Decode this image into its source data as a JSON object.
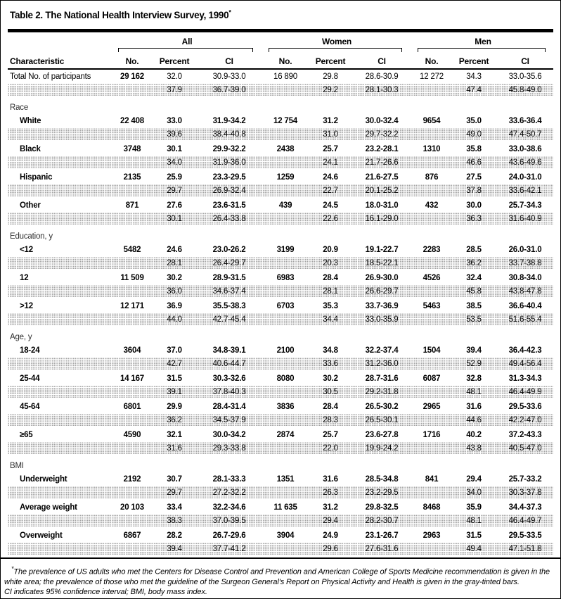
{
  "table_title": "Table 2. The National Health Interview Survey, 1990",
  "title_mark": "*",
  "header": {
    "characteristic": "Characteristic",
    "groups": [
      {
        "label": "All",
        "subcols": [
          "No.",
          "Percent",
          "CI"
        ]
      },
      {
        "label": "Women",
        "subcols": [
          "No.",
          "Percent",
          "CI"
        ]
      },
      {
        "label": "Men",
        "subcols": [
          "No.",
          "Percent",
          "CI"
        ]
      }
    ]
  },
  "table": {
    "rows": [
      {
        "type": "data",
        "label": "Total No. of participants",
        "indent": false,
        "emph": "first",
        "white": [
          "29 162",
          "32.0",
          "30.9-33.0",
          "16 890",
          "29.8",
          "28.6-30.9",
          "12 272",
          "34.3",
          "33.0-35.6"
        ],
        "gray": [
          "37.9",
          "36.7-39.0",
          "29.2",
          "28.1-30.3",
          "47.4",
          "45.8-49.0"
        ]
      },
      {
        "type": "section",
        "label": "Race"
      },
      {
        "type": "data",
        "label": "White",
        "indent": true,
        "emph": "row",
        "white": [
          "22 408",
          "33.0",
          "31.9-34.2",
          "12 754",
          "31.2",
          "30.0-32.4",
          "9654",
          "35.0",
          "33.6-36.4"
        ],
        "gray": [
          "39.6",
          "38.4-40.8",
          "31.0",
          "29.7-32.2",
          "49.0",
          "47.4-50.7"
        ]
      },
      {
        "type": "data",
        "label": "Black",
        "indent": true,
        "emph": "row",
        "white": [
          "3748",
          "30.1",
          "29.9-32.2",
          "2438",
          "25.7",
          "23.2-28.1",
          "1310",
          "35.8",
          "33.0-38.6"
        ],
        "gray": [
          "34.0",
          "31.9-36.0",
          "24.1",
          "21.7-26.6",
          "46.6",
          "43.6-49.6"
        ]
      },
      {
        "type": "data",
        "label": "Hispanic",
        "indent": true,
        "emph": "row",
        "white": [
          "2135",
          "25.9",
          "23.3-29.5",
          "1259",
          "24.6",
          "21.6-27.5",
          "876",
          "27.5",
          "24.0-31.0"
        ],
        "gray": [
          "29.7",
          "26.9-32.4",
          "22.7",
          "20.1-25.2",
          "37.8",
          "33.6-42.1"
        ]
      },
      {
        "type": "data",
        "label": "Other",
        "indent": true,
        "emph": "row",
        "white": [
          "871",
          "27.6",
          "23.6-31.5",
          "439",
          "24.5",
          "18.0-31.0",
          "432",
          "30.0",
          "25.7-34.3"
        ],
        "gray": [
          "30.1",
          "26.4-33.8",
          "22.6",
          "16.1-29.0",
          "36.3",
          "31.6-40.9"
        ]
      },
      {
        "type": "section",
        "label": "Education, y"
      },
      {
        "type": "data",
        "label": "<12",
        "indent": true,
        "emph": "row",
        "white": [
          "5482",
          "24.6",
          "23.0-26.2",
          "3199",
          "20.9",
          "19.1-22.7",
          "2283",
          "28.5",
          "26.0-31.0"
        ],
        "gray": [
          "28.1",
          "26.4-29.7",
          "20.3",
          "18.5-22.1",
          "36.2",
          "33.7-38.8"
        ]
      },
      {
        "type": "data",
        "label": "12",
        "indent": true,
        "emph": "row",
        "white": [
          "11 509",
          "30.2",
          "28.9-31.5",
          "6983",
          "28.4",
          "26.9-30.0",
          "4526",
          "32.4",
          "30.8-34.0"
        ],
        "gray": [
          "36.0",
          "34.6-37.4",
          "28.1",
          "26.6-29.7",
          "45.8",
          "43.8-47.8"
        ]
      },
      {
        "type": "data",
        "label": ">12",
        "indent": true,
        "emph": "row",
        "white": [
          "12 171",
          "36.9",
          "35.5-38.3",
          "6703",
          "35.3",
          "33.7-36.9",
          "5463",
          "38.5",
          "36.6-40.4"
        ],
        "gray": [
          "44.0",
          "42.7-45.4",
          "34.4",
          "33.0-35.9",
          "53.5",
          "51.6-55.4"
        ]
      },
      {
        "type": "section",
        "label": "Age, y"
      },
      {
        "type": "data",
        "label": "18-24",
        "indent": true,
        "emph": "row",
        "white": [
          "3604",
          "37.0",
          "34.8-39.1",
          "2100",
          "34.8",
          "32.2-37.4",
          "1504",
          "39.4",
          "36.4-42.3"
        ],
        "gray": [
          "42.7",
          "40.6-44.7",
          "33.6",
          "31.2-36.0",
          "52.9",
          "49.4-56.4"
        ]
      },
      {
        "type": "data",
        "label": "25-44",
        "indent": true,
        "emph": "row",
        "white": [
          "14 167",
          "31.5",
          "30.3-32.6",
          "8080",
          "30.2",
          "28.7-31.6",
          "6087",
          "32.8",
          "31.3-34.3"
        ],
        "gray": [
          "39.1",
          "37.8-40.3",
          "30.5",
          "29.2-31.8",
          "48.1",
          "46.4-49.9"
        ]
      },
      {
        "type": "data",
        "label": "45-64",
        "indent": true,
        "emph": "row",
        "white": [
          "6801",
          "29.9",
          "28.4-31.4",
          "3836",
          "28.4",
          "26.5-30.2",
          "2965",
          "31.6",
          "29.5-33.6"
        ],
        "gray": [
          "36.2",
          "34.5-37.9",
          "28.3",
          "26.5-30.1",
          "44.6",
          "42.2-47.0"
        ]
      },
      {
        "type": "data",
        "label": "≥65",
        "indent": true,
        "emph": "row",
        "white": [
          "4590",
          "32.1",
          "30.0-34.2",
          "2874",
          "25.7",
          "23.6-27.8",
          "1716",
          "40.2",
          "37.2-43.3"
        ],
        "gray": [
          "31.6",
          "29.3-33.8",
          "22.0",
          "19.9-24.2",
          "43.8",
          "40.5-47.0"
        ]
      },
      {
        "type": "section",
        "label": "BMI"
      },
      {
        "type": "data",
        "label": "Underweight",
        "indent": true,
        "emph": "row",
        "white": [
          "2192",
          "30.7",
          "28.1-33.3",
          "1351",
          "31.6",
          "28.5-34.8",
          "841",
          "29.4",
          "25.7-33.2"
        ],
        "gray": [
          "29.7",
          "27.2-32.2",
          "26.3",
          "23.2-29.5",
          "34.0",
          "30.3-37.8"
        ]
      },
      {
        "type": "data",
        "label": "Average weight",
        "indent": true,
        "emph": "row",
        "white": [
          "20 103",
          "33.4",
          "32.2-34.6",
          "11 635",
          "31.2",
          "29.8-32.5",
          "8468",
          "35.9",
          "34.4-37.3"
        ],
        "gray": [
          "38.3",
          "37.0-39.5",
          "29.4",
          "28.2-30.7",
          "48.1",
          "46.4-49.7"
        ]
      },
      {
        "type": "data",
        "label": "Overweight",
        "indent": true,
        "emph": "row",
        "white": [
          "6867",
          "28.2",
          "26.7-29.6",
          "3904",
          "24.9",
          "23.1-26.7",
          "2963",
          "31.5",
          "29.5-33.5"
        ],
        "gray": [
          "39.4",
          "37.7-41.2",
          "29.6",
          "27.6-31.6",
          "49.4",
          "47.1-51.8"
        ]
      }
    ]
  },
  "footnote": {
    "marker": "*",
    "text": "The prevalence of US adults who met the Centers for Disease Control and Prevention and American College of Sports Medicine recommendation is given in the white area; the prevalence of those who met the guideline of the Surgeon General's Report on Physical Activity and Health is given in the gray-tinted bars.",
    "line2": "CI indicates 95% confidence interval; BMI, body mass index."
  },
  "colors": {
    "rule": "#000000",
    "text": "#000000",
    "section_text": "#2e2e2e",
    "gray_row_dot": "#9a9a9a"
  }
}
